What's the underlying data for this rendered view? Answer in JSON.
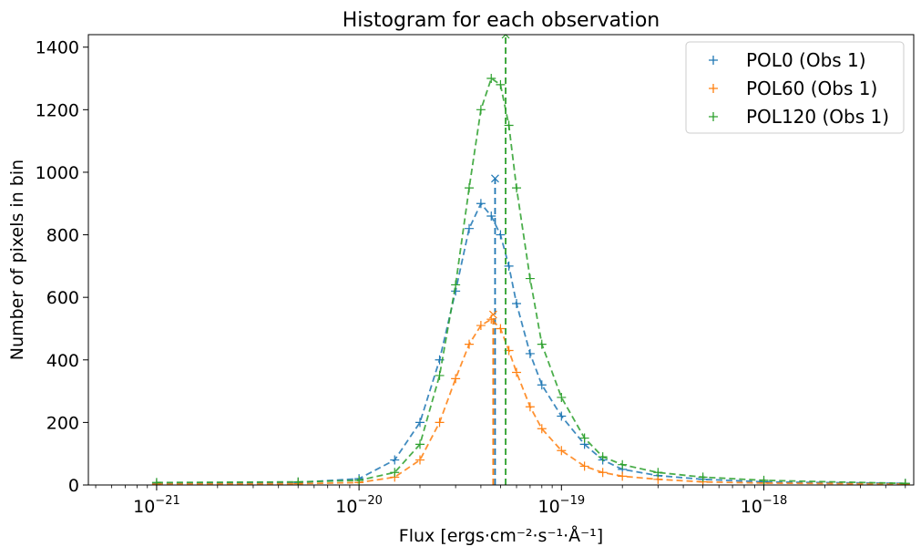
{
  "chart_data": {
    "type": "scatter",
    "title": "Histogram for each observation",
    "xlabel": "Flux [ergs·cm⁻²·s⁻¹·Å⁻¹]",
    "ylabel": "Number of pixels in bin",
    "xscale": "log",
    "xlim": [
      4.6e-22,
      5.5e-18
    ],
    "ylim": [
      0,
      1440
    ],
    "yticks": [
      0,
      200,
      400,
      600,
      800,
      1000,
      1200,
      1400
    ],
    "ytick_labels": [
      "0",
      "200",
      "400",
      "600",
      "800",
      "1000",
      "1200",
      "1400"
    ],
    "xticks": [
      1e-21,
      1e-20,
      1e-19,
      1e-18
    ],
    "xtick_labels": [
      {
        "base": "10",
        "exp": "−21"
      },
      {
        "base": "10",
        "exp": "−20"
      },
      {
        "base": "10",
        "exp": "−19"
      },
      {
        "base": "10",
        "exp": "−18"
      }
    ],
    "legend_position": "top-right",
    "series": [
      {
        "name": "POL0 (Obs 1)",
        "color": "#1f77b4",
        "marker": "+",
        "x": [
          1e-21,
          5e-21,
          1e-20,
          1.5e-20,
          2e-20,
          2.5e-20,
          3e-20,
          3.5e-20,
          4e-20,
          4.5e-20,
          5e-20,
          5.5e-20,
          6e-20,
          7e-20,
          8e-20,
          1e-19,
          1.3e-19,
          1.6e-19,
          2e-19,
          3e-19,
          5e-19,
          1e-18,
          5e-18
        ],
        "y": [
          5,
          8,
          20,
          80,
          200,
          400,
          620,
          820,
          900,
          860,
          800,
          700,
          580,
          420,
          320,
          220,
          130,
          80,
          50,
          30,
          18,
          10,
          5
        ],
        "fit_peak_x": 4.7e-20,
        "fit_peak_y": 980
      },
      {
        "name": "POL60 (Obs 1)",
        "color": "#ff7f0e",
        "marker": "+",
        "x": [
          1e-21,
          5e-21,
          1e-20,
          1.5e-20,
          2e-20,
          2.5e-20,
          3e-20,
          3.5e-20,
          4e-20,
          4.5e-20,
          5e-20,
          5.5e-20,
          6e-20,
          7e-20,
          8e-20,
          1e-19,
          1.3e-19,
          1.6e-19,
          2e-19,
          3e-19,
          5e-19,
          1e-18,
          5e-18
        ],
        "y": [
          3,
          4,
          8,
          25,
          80,
          200,
          340,
          450,
          510,
          530,
          500,
          430,
          360,
          250,
          180,
          110,
          60,
          40,
          28,
          18,
          10,
          6,
          3
        ],
        "fit_peak_x": 4.6e-20,
        "fit_peak_y": 545
      },
      {
        "name": "POL120 (Obs 1)",
        "color": "#2ca02c",
        "marker": "+",
        "x": [
          1e-21,
          5e-21,
          1e-20,
          1.5e-20,
          2e-20,
          2.5e-20,
          3e-20,
          3.5e-20,
          4e-20,
          4.5e-20,
          5e-20,
          5.5e-20,
          6e-20,
          7e-20,
          8e-20,
          1e-19,
          1.3e-19,
          1.6e-19,
          2e-19,
          3e-19,
          5e-19,
          1e-18,
          5e-18
        ],
        "y": [
          8,
          10,
          15,
          40,
          130,
          350,
          640,
          950,
          1200,
          1300,
          1280,
          1150,
          950,
          660,
          450,
          280,
          150,
          90,
          65,
          40,
          25,
          15,
          5
        ],
        "fit_peak_x": 5.3e-20,
        "fit_peak_y": 1440
      }
    ]
  }
}
